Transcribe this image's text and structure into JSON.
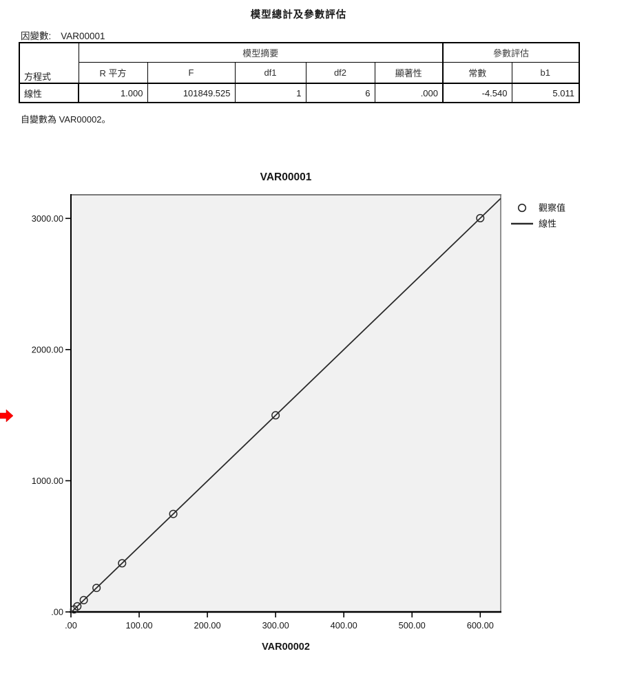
{
  "header": {
    "title": "模型總計及參數評估",
    "dependent_label": "因變數:",
    "dependent_value": "VAR00001"
  },
  "table": {
    "corner_label": "方程式",
    "group_headers": {
      "model_summary": "模型摘要",
      "parameter_estimates": "參數評估"
    },
    "col_headers": [
      "R 平方",
      "F",
      "df1",
      "df2",
      "顯著性",
      "常數",
      "b1"
    ],
    "rows": [
      {
        "label": "線性",
        "values": [
          "1.000",
          "101849.525",
          "1",
          "6",
          ".000",
          "-4.540",
          "5.011"
        ]
      }
    ],
    "footnote": "自變數為 VAR00002。"
  },
  "chart_data": {
    "type": "scatter",
    "title": "VAR00001",
    "xlabel": "VAR00002",
    "ylabel": "",
    "xlim": [
      0,
      630
    ],
    "ylim": [
      0,
      3180
    ],
    "grid": false,
    "plot_background": "#f1f1f1",
    "line_color": "#2a2a2a",
    "x_ticks": [
      {
        "value": 0,
        "label": ".00"
      },
      {
        "value": 100,
        "label": "100.00"
      },
      {
        "value": 200,
        "label": "200.00"
      },
      {
        "value": 300,
        "label": "300.00"
      },
      {
        "value": 400,
        "label": "400.00"
      },
      {
        "value": 500,
        "label": "500.00"
      },
      {
        "value": 600,
        "label": "600.00"
      }
    ],
    "y_ticks": [
      {
        "value": 0,
        "label": ".00"
      },
      {
        "value": 1000,
        "label": "1000.00"
      },
      {
        "value": 2000,
        "label": "2000.00"
      },
      {
        "value": 3000,
        "label": "3000.00"
      }
    ],
    "series": [
      {
        "name": "觀察值",
        "type": "scatter",
        "points": [
          [
            4.7,
            19
          ],
          [
            9.4,
            43
          ],
          [
            18.8,
            90
          ],
          [
            37.5,
            183
          ],
          [
            75,
            371
          ],
          [
            150,
            747
          ],
          [
            300,
            1499
          ],
          [
            600,
            3002
          ]
        ]
      },
      {
        "name": "線性",
        "type": "line",
        "intercept": -4.54,
        "slope": 5.011
      }
    ],
    "legend": {
      "position": "top-right-outside",
      "entries": [
        {
          "marker": "circle",
          "label": "觀察值"
        },
        {
          "marker": "line",
          "label": "線性"
        }
      ]
    }
  },
  "indicator": {
    "name": "output-selection-arrow",
    "color": "#ff0000"
  }
}
